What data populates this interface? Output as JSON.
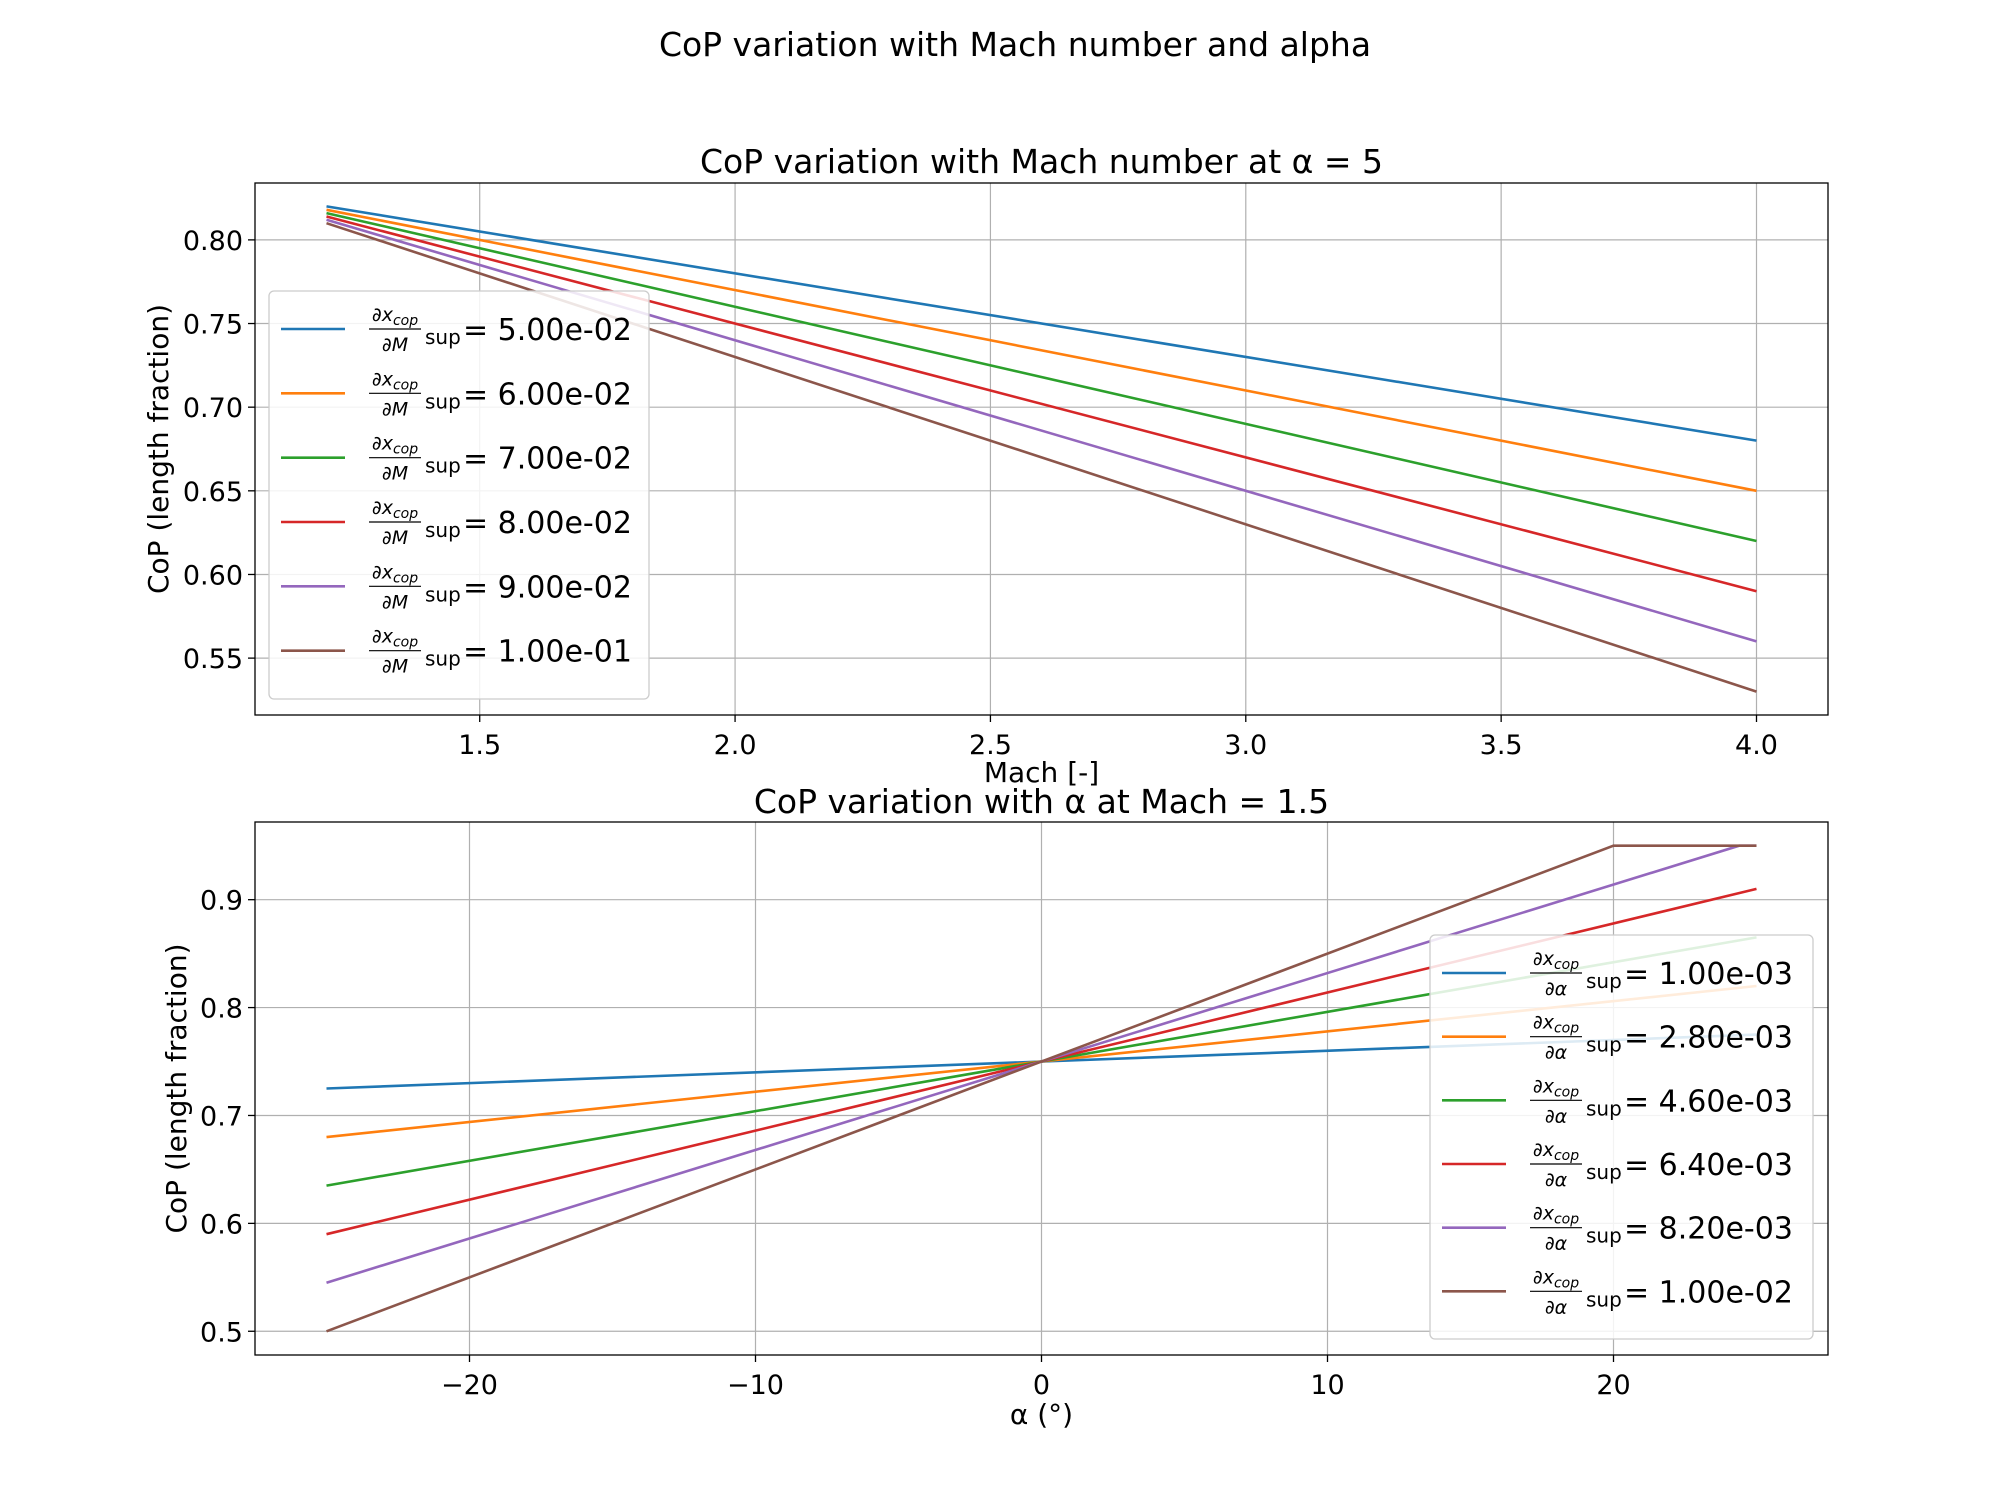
{
  "suptitle": "CoP variation with Mach number and alpha",
  "chart_data": [
    {
      "type": "line",
      "title": "CoP variation with Mach number at α = 5",
      "xlabel": "Mach [-]",
      "ylabel": "CoP (length fraction)",
      "xlim": [
        1.06,
        4.14
      ],
      "ylim": [
        0.516,
        0.834
      ],
      "xticks": [
        1.5,
        2.0,
        2.5,
        3.0,
        3.5,
        4.0
      ],
      "xtick_labels": [
        "1.5",
        "2.0",
        "2.5",
        "3.0",
        "3.5",
        "4.0"
      ],
      "yticks": [
        0.55,
        0.6,
        0.65,
        0.7,
        0.75,
        0.8
      ],
      "ytick_labels": [
        "0.55",
        "0.60",
        "0.65",
        "0.70",
        "0.75",
        "0.80"
      ],
      "grid": true,
      "legend_position": "center-left",
      "legend_prefix": {
        "num": "∂x",
        "num_sub": "cop",
        "den": "∂M",
        "suffix": "sup"
      },
      "series": [
        {
          "name": "= 5.00e-02",
          "color": "#1f77b4",
          "x": [
            1.2,
            4.0
          ],
          "y": [
            0.82,
            0.68
          ]
        },
        {
          "name": "= 6.00e-02",
          "color": "#ff7f0e",
          "x": [
            1.2,
            4.0
          ],
          "y": [
            0.818,
            0.65
          ]
        },
        {
          "name": "= 7.00e-02",
          "color": "#2ca02c",
          "x": [
            1.2,
            4.0
          ],
          "y": [
            0.816,
            0.62
          ]
        },
        {
          "name": "= 8.00e-02",
          "color": "#d62728",
          "x": [
            1.2,
            4.0
          ],
          "y": [
            0.814,
            0.59
          ]
        },
        {
          "name": "= 9.00e-02",
          "color": "#9467bd",
          "x": [
            1.2,
            4.0
          ],
          "y": [
            0.812,
            0.56
          ]
        },
        {
          "name": "= 1.00e-01",
          "color": "#8c564b",
          "x": [
            1.2,
            4.0
          ],
          "y": [
            0.81,
            0.53
          ]
        }
      ]
    },
    {
      "type": "line",
      "title": "CoP variation with α at Mach = 1.5",
      "xlabel": "α (°)",
      "ylabel": "CoP (length fraction)",
      "xlim": [
        -27.5,
        27.5
      ],
      "ylim": [
        0.478,
        0.972
      ],
      "xticks": [
        -20,
        -10,
        0,
        10,
        20
      ],
      "xtick_labels": [
        "−20",
        "−10",
        "0",
        "10",
        "20"
      ],
      "yticks": [
        0.5,
        0.6,
        0.7,
        0.8,
        0.9
      ],
      "ytick_labels": [
        "0.5",
        "0.6",
        "0.7",
        "0.8",
        "0.9"
      ],
      "grid": true,
      "legend_position": "center-right",
      "legend_prefix": {
        "num": "∂x",
        "num_sub": "cop",
        "den": "∂α",
        "suffix": "sup"
      },
      "series": [
        {
          "name": "= 1.00e-03",
          "color": "#1f77b4",
          "x": [
            -25,
            25
          ],
          "y": [
            0.725,
            0.775
          ]
        },
        {
          "name": "= 2.80e-03",
          "color": "#ff7f0e",
          "x": [
            -25,
            25
          ],
          "y": [
            0.68,
            0.82
          ]
        },
        {
          "name": "= 4.60e-03",
          "color": "#2ca02c",
          "x": [
            -25,
            25
          ],
          "y": [
            0.635,
            0.865
          ]
        },
        {
          "name": "= 6.40e-03",
          "color": "#d62728",
          "x": [
            -25,
            25
          ],
          "y": [
            0.59,
            0.91
          ]
        },
        {
          "name": "= 8.20e-03",
          "color": "#9467bd",
          "x": [
            -25,
            24.39,
            25
          ],
          "y": [
            0.545,
            0.95,
            0.95
          ]
        },
        {
          "name": "= 1.00e-02",
          "color": "#8c564b",
          "x": [
            -25,
            20,
            25
          ],
          "y": [
            0.5,
            0.95,
            0.95
          ]
        }
      ]
    }
  ]
}
